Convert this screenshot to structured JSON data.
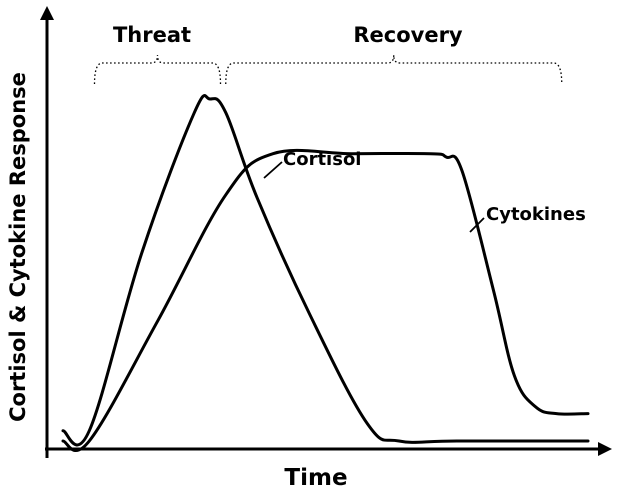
{
  "chart_data": {
    "type": "line",
    "xlabel": "Time",
    "ylabel": "Cortisol & Cytokine Response",
    "x_ticks_shown": false,
    "y_ticks_shown": false,
    "grid": false,
    "legend": "none (series labeled directly on curves)",
    "phases": [
      {
        "label": "Threat",
        "x_range": [
          0.06,
          0.3
        ]
      },
      {
        "label": "Recovery",
        "x_range": [
          0.31,
          0.95
        ]
      }
    ],
    "series": [
      {
        "name": "Cortisol",
        "x": [
          0.0,
          0.05,
          0.15,
          0.25,
          0.28,
          0.31,
          0.37,
          0.47,
          0.58,
          0.64,
          0.75,
          1.0
        ],
        "y": [
          0.03,
          0.03,
          0.55,
          0.96,
          1.0,
          0.96,
          0.71,
          0.37,
          0.05,
          0.0,
          0.0,
          0.0
        ]
      },
      {
        "name": "Cytokines",
        "x": [
          0.0,
          0.05,
          0.18,
          0.31,
          0.4,
          0.55,
          0.7,
          0.73,
          0.76,
          0.82,
          0.86,
          0.9,
          0.94,
          1.0
        ],
        "y": [
          0.0,
          0.0,
          0.35,
          0.72,
          0.84,
          0.84,
          0.84,
          0.83,
          0.79,
          0.44,
          0.19,
          0.1,
          0.08,
          0.08
        ]
      }
    ]
  }
}
